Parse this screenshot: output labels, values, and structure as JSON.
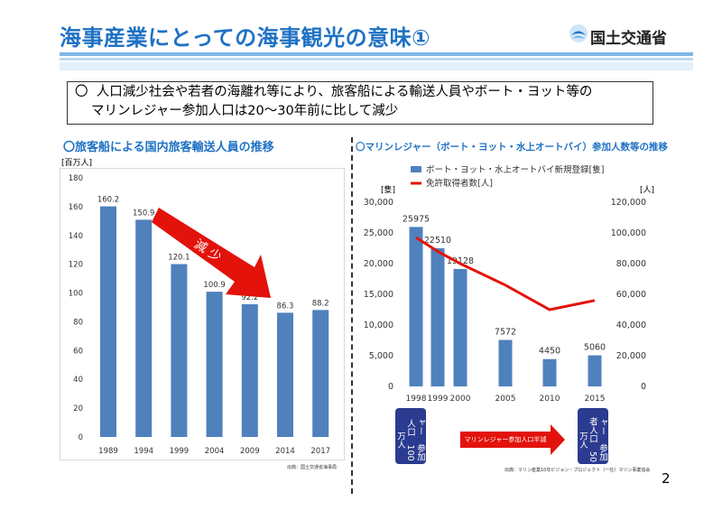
{
  "header": {
    "title": "海事産業にとっての海事観光の意味①",
    "ministry": "国土交通省"
  },
  "summary": {
    "bullet": "〇",
    "line1": "人口減少社会や若者の海離れ等により、旅客船による輸送人員やボート・ヨット等の",
    "line2": "マリンレジャー参加人口は20～30年前に比して減少"
  },
  "left_section_title": "〇旅客船による国内旅客輸送人員の推移",
  "right_section_title": "〇マリンレジャー（ボート・ヨット・水上オートバイ）参加人数等の推移",
  "left_source": "出典：国土交通省海事局",
  "right_source": "出典：マリン産業10年ビジョン・プロジェクト（一社）マリン事業協会",
  "page_number": "2",
  "colors": {
    "bar": "#4f81bd",
    "line": "#e3120b",
    "title": "#1f72c4",
    "navy": "#2b3b8f"
  },
  "chart_data": [
    {
      "type": "bar",
      "ylabel": "[百万人]",
      "categories": [
        "1989",
        "1994",
        "1999",
        "2004",
        "2009",
        "2014",
        "2017"
      ],
      "values": [
        160.2,
        150.9,
        120.1,
        100.9,
        92.2,
        86.3,
        88.2
      ],
      "data_labels": [
        "160.2",
        "150.9",
        "120.1",
        "100.9",
        "92.2",
        "86.3",
        "88.2"
      ],
      "ylim": [
        0,
        180
      ],
      "yticks": [
        "0",
        "20",
        "40",
        "60",
        "80",
        "100",
        "120",
        "140",
        "160",
        "180"
      ],
      "annotation": "減 少"
    },
    {
      "type": "bar+line",
      "categories": [
        "1998",
        "1999",
        "2000",
        "2005",
        "2010",
        "2015"
      ],
      "series": [
        {
          "name": "ボート・ヨット・水上オートバイ新規登録[隻]",
          "type": "bar",
          "values": [
            25975,
            22510,
            19128,
            7572,
            4450,
            5060
          ],
          "data_labels": [
            "25975",
            "22510",
            "19128",
            "7572",
            "4450",
            "5060"
          ]
        },
        {
          "name": "免許取得者数[人]",
          "type": "line",
          "axis": "right",
          "values": [
            97000,
            88000,
            80000,
            66000,
            50000,
            56000
          ]
        }
      ],
      "y_left_label": "[隻]",
      "y_right_label": "[人]",
      "ylim_left": [
        0,
        30000
      ],
      "ylim_right": [
        0,
        120000
      ],
      "yticks_left": [
        "0",
        "5,000",
        "10,000",
        "15,000",
        "20,000",
        "25,000",
        "30,000"
      ],
      "yticks_right": [
        "0",
        "20,000",
        "40,000",
        "60,000",
        "80,000",
        "100,000",
        "120,000"
      ],
      "annotations": {
        "box_left": [
          "マリンレジャー",
          "参加人口",
          "100万人"
        ],
        "box_right": [
          "マリンレジャー",
          "参加者人口",
          "50万人"
        ],
        "arrow": "マリンレジャー参加人口半減"
      }
    }
  ]
}
